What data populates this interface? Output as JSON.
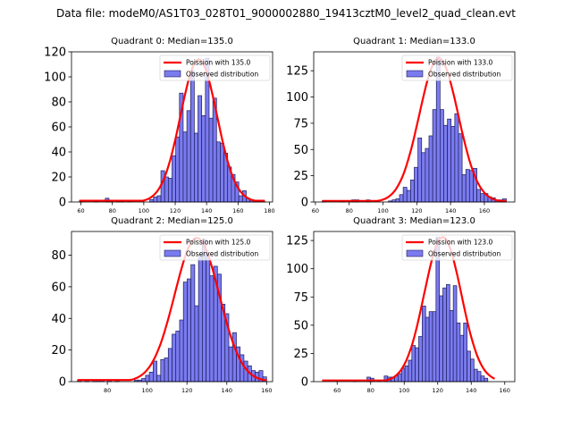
{
  "suptitle": "Data file: modeM0/AS1T03_028T01_9000002880_19413cztM0_level2_quad_clean.evt",
  "colors": {
    "bar_fill": "#7b7bf0",
    "bar_edge": "#1c1c5a",
    "curve": "#ff0000"
  },
  "chart_data": [
    {
      "type": "bar",
      "title": "Quadrant 0: Median=135.0",
      "legend": [
        "Poission with 135.0",
        "Observed distribution"
      ],
      "legend_position": "upper-right",
      "xlim": [
        54,
        182
      ],
      "ylim": [
        0,
        120
      ],
      "xticks": [
        60,
        80,
        100,
        120,
        140,
        160,
        180
      ],
      "yticks": [
        0,
        20,
        40,
        60,
        80,
        100,
        120
      ],
      "bin_start": 59,
      "bin_width": 2.36,
      "values": [
        1,
        0,
        0,
        0,
        1,
        0,
        0,
        3,
        1,
        0,
        1,
        1,
        0,
        1,
        0,
        0,
        0,
        0,
        0,
        2,
        4,
        5,
        25,
        20,
        19,
        37,
        52,
        87,
        56,
        73,
        105,
        55,
        85,
        69,
        115,
        67,
        83,
        48,
        47,
        39,
        28,
        22,
        16,
        5,
        9,
        3,
        2,
        1,
        1,
        1
      ],
      "curve": {
        "label": "Poission with 135.0",
        "mean": 135.0,
        "peak": 114
      }
    },
    {
      "type": "bar",
      "title": "Quadrant 1: Median=133.0",
      "legend": [
        "Poission with 133.0",
        "Observed distribution"
      ],
      "legend_position": "upper-right",
      "xlim": [
        59,
        178
      ],
      "ylim": [
        0,
        143
      ],
      "xticks": [
        60,
        80,
        100,
        120,
        140,
        160
      ],
      "yticks": [
        0,
        25,
        50,
        75,
        100,
        125
      ],
      "bin_start": 64,
      "bin_width": 2.18,
      "values": [
        1,
        0,
        0,
        0,
        0,
        1,
        0,
        0,
        2,
        2,
        0,
        0,
        2,
        0,
        0,
        0,
        0,
        0,
        1,
        2,
        3,
        7,
        14,
        11,
        21,
        33,
        61,
        47,
        51,
        63,
        88,
        138,
        88,
        73,
        79,
        72,
        84,
        65,
        26,
        31,
        30,
        32,
        12,
        8,
        8,
        5,
        4,
        2,
        2,
        3
      ],
      "curve": {
        "label": "Poission with 133.0",
        "mean": 133.0,
        "peak": 137
      }
    },
    {
      "type": "bar",
      "title": "Quadrant 2: Median=125.0",
      "legend": [
        "Poission with 125.0",
        "Observed distribution"
      ],
      "legend_position": "upper-right",
      "xlim": [
        62,
        163
      ],
      "ylim": [
        0,
        95
      ],
      "xticks": [
        80,
        100,
        120,
        140,
        160
      ],
      "yticks": [
        0,
        20,
        40,
        60,
        80
      ],
      "bin_start": 65,
      "bin_width": 1.9,
      "values": [
        1,
        0,
        1,
        0,
        1,
        1,
        1,
        0,
        1,
        0,
        1,
        0,
        0,
        0,
        0,
        1,
        1,
        2,
        4,
        6,
        13,
        4,
        14,
        15,
        21,
        30,
        32,
        39,
        63,
        65,
        74,
        48,
        80,
        90,
        80,
        67,
        73,
        68,
        49,
        43,
        22,
        31,
        22,
        17,
        13,
        10,
        7,
        6,
        7,
        3
      ],
      "curve": {
        "label": "Poission with 125.0",
        "mean": 125.0,
        "peak": 91
      }
    },
    {
      "type": "bar",
      "title": "Quadrant 3: Median=123.0",
      "legend": [
        "Poission with 123.0",
        "Observed distribution"
      ],
      "legend_position": "upper-right",
      "xlim": [
        46,
        166
      ],
      "ylim": [
        0,
        133
      ],
      "xticks": [
        60,
        80,
        100,
        120,
        140,
        160
      ],
      "yticks": [
        0,
        25,
        50,
        75,
        100,
        125
      ],
      "bin_start": 51,
      "bin_width": 2.06,
      "values": [
        0,
        0,
        0,
        0,
        0,
        0,
        0,
        0,
        0,
        1,
        0,
        0,
        0,
        4,
        3,
        0,
        1,
        0,
        5,
        4,
        4,
        5,
        7,
        12,
        14,
        19,
        32,
        30,
        40,
        67,
        57,
        62,
        62,
        128,
        76,
        83,
        86,
        63,
        85,
        52,
        41,
        52,
        27,
        20,
        11,
        9,
        5,
        3,
        0,
        0
      ],
      "curve": {
        "label": "Poission with 123.0",
        "mean": 123.0,
        "peak": 128
      }
    }
  ]
}
